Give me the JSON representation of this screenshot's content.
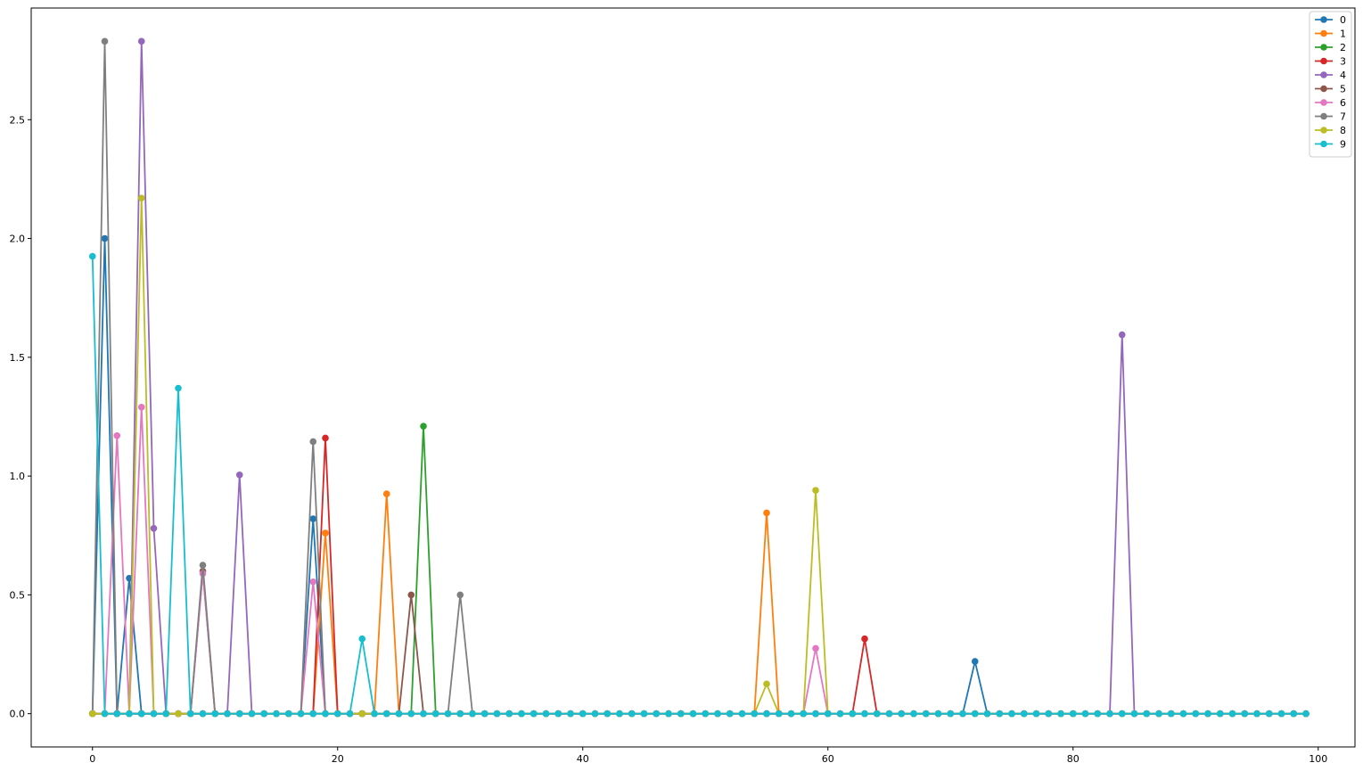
{
  "chart_data": {
    "type": "line",
    "xlim": [
      -5,
      103
    ],
    "ylim": [
      -0.14,
      2.97
    ],
    "x_ticks": [
      0,
      20,
      40,
      60,
      80,
      100
    ],
    "y_ticks": [
      0.0,
      0.5,
      1.0,
      1.5,
      2.0,
      2.5
    ],
    "x_tick_labels": [
      "0",
      "20",
      "40",
      "60",
      "80",
      "100"
    ],
    "y_tick_labels": [
      "0.0",
      "0.5",
      "1.0",
      "1.5",
      "2.0",
      "2.5"
    ],
    "legend_position": "top-right",
    "n_points": 100,
    "series": [
      {
        "name": "0",
        "color": "#1f77b4",
        "peaks": [
          [
            0,
            0
          ],
          [
            1,
            2.0
          ],
          [
            3,
            0.57
          ],
          [
            18,
            0.82
          ],
          [
            72,
            0.22
          ]
        ]
      },
      {
        "name": "1",
        "color": "#ff7f0e",
        "peaks": [
          [
            19,
            0.76
          ],
          [
            24,
            0.925
          ],
          [
            55,
            0.845
          ]
        ]
      },
      {
        "name": "2",
        "color": "#2ca02c",
        "peaks": [
          [
            27,
            1.21
          ]
        ]
      },
      {
        "name": "3",
        "color": "#d62728",
        "peaks": [
          [
            19,
            1.16
          ],
          [
            63,
            0.315
          ]
        ]
      },
      {
        "name": "4",
        "color": "#9467bd",
        "peaks": [
          [
            4,
            2.83
          ],
          [
            5,
            0.78
          ],
          [
            12,
            1.005
          ],
          [
            84,
            1.595
          ]
        ]
      },
      {
        "name": "5",
        "color": "#8c564b",
        "peaks": [
          [
            9,
            0.6
          ],
          [
            26,
            0.5
          ]
        ]
      },
      {
        "name": "6",
        "color": "#e377c2",
        "peaks": [
          [
            2,
            1.17
          ],
          [
            4,
            1.29
          ],
          [
            9,
            0.59
          ],
          [
            18,
            0.555
          ],
          [
            59,
            0.275
          ]
        ]
      },
      {
        "name": "7",
        "color": "#7f7f7f",
        "peaks": [
          [
            1,
            2.83
          ],
          [
            9,
            0.625
          ],
          [
            18,
            1.145
          ],
          [
            30,
            0.5
          ]
        ]
      },
      {
        "name": "8",
        "color": "#bcbd22",
        "peaks": [
          [
            4,
            2.17
          ],
          [
            55,
            0.125
          ],
          [
            59,
            0.94
          ]
        ]
      },
      {
        "name": "9",
        "color": "#17becf",
        "peaks": [
          [
            0,
            1.925
          ],
          [
            7,
            1.37
          ],
          [
            22,
            0.315
          ]
        ]
      }
    ]
  }
}
